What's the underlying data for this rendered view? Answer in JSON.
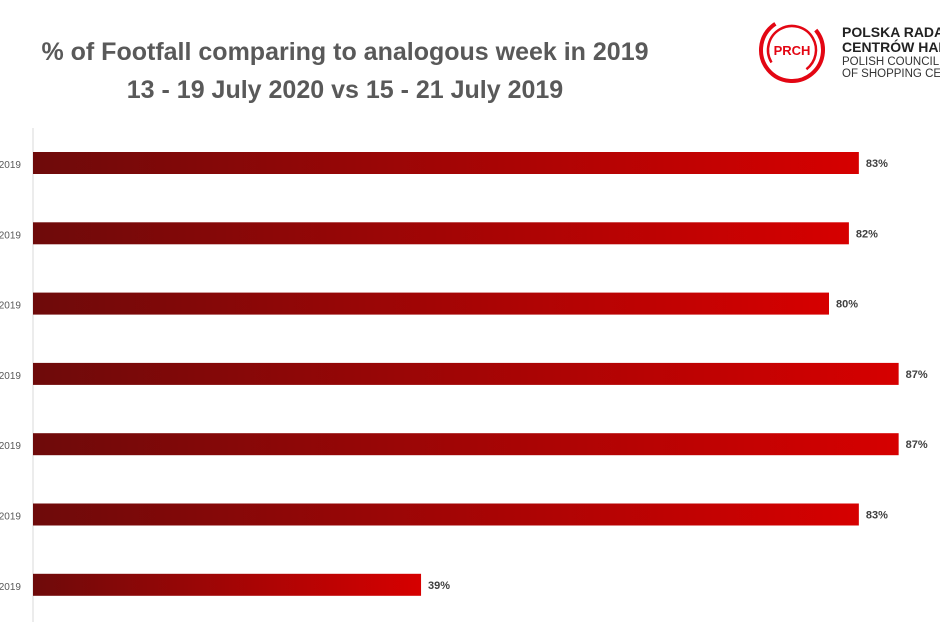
{
  "chart_data": {
    "type": "bar",
    "orientation": "horizontal",
    "title": "% of Footfall comparing to analogous week in 2019",
    "subtitle": "13 - 19 July 2020 vs 15 - 21 July 2019",
    "categories": [
      "2019",
      "2019",
      "2019",
      "2019",
      "2019",
      "2019",
      "2019"
    ],
    "values": [
      83,
      82,
      80,
      87,
      87,
      83,
      39
    ],
    "data_labels": [
      "83%",
      "82%",
      "80%",
      "87%",
      "87%",
      "83%",
      "39%"
    ],
    "xlim": [
      0,
      100
    ],
    "grid": false,
    "legend": "none",
    "bar_color_dark": "#6e0a0a",
    "bar_color_light": "#d60000"
  },
  "logo": {
    "badge": "PRCH",
    "line1": "POLSKA RADA",
    "line2": "CENTRÓW HANDLOWYCH",
    "line3": "POLISH COUNCIL",
    "line4": "OF SHOPPING CENTRES",
    "color": "#e30613"
  }
}
